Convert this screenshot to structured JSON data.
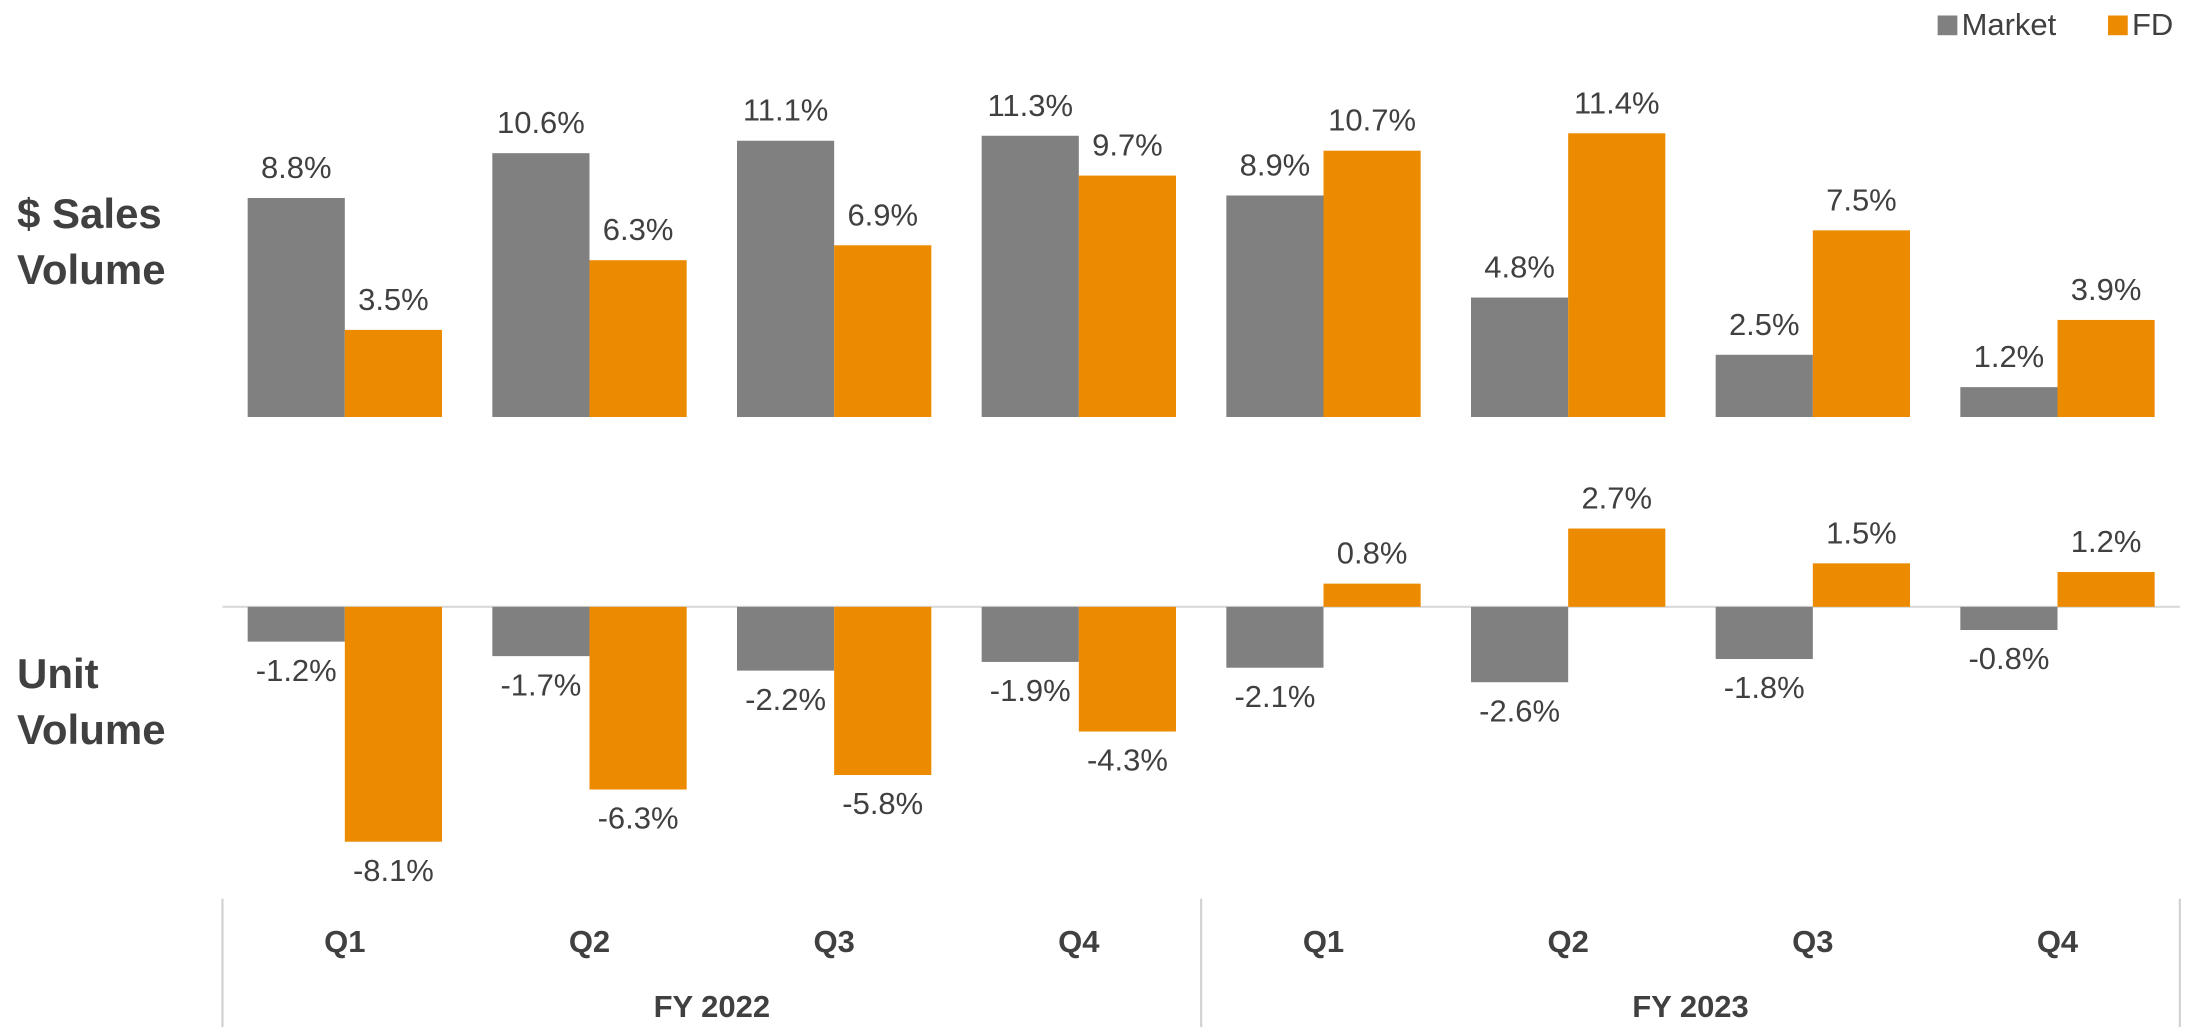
{
  "chart_data": [
    {
      "type": "bar",
      "ylabel": "$ Sales Volume",
      "ylim": [
        0,
        12
      ],
      "legend": "top-right",
      "categories": [
        "Q1",
        "Q2",
        "Q3",
        "Q4",
        "Q1",
        "Q2",
        "Q3",
        "Q4"
      ],
      "groups": [
        "FY 2022",
        "FY 2023"
      ],
      "series": [
        {
          "name": "Market",
          "color": "#808080",
          "values": [
            8.8,
            10.6,
            11.1,
            11.3,
            8.9,
            4.8,
            2.5,
            1.2
          ],
          "value_labels": [
            "8.8%",
            "10.6%",
            "11.1%",
            "11.3%",
            "8.9%",
            "4.8%",
            "2.5%",
            "1.2%"
          ]
        },
        {
          "name": "FD",
          "color": "#ED8B00",
          "values": [
            3.5,
            6.3,
            6.9,
            9.7,
            10.7,
            11.4,
            7.5,
            3.9
          ],
          "value_labels": [
            "3.5%",
            "6.3%",
            "6.9%",
            "9.7%",
            "10.7%",
            "11.4%",
            "7.5%",
            "3.9%"
          ]
        }
      ]
    },
    {
      "type": "bar",
      "ylabel": "Unit Volume",
      "ylim": [
        -9,
        3
      ],
      "series": [
        {
          "color": "#808080",
          "values": [
            -1.2,
            -1.7,
            -2.2,
            -1.9,
            -2.1,
            -2.6,
            -1.8,
            -0.8
          ],
          "value_labels": [
            "-1.2%",
            "-1.7%",
            "-2.2%",
            "-1.9%",
            "-2.1%",
            "-2.6%",
            "-1.8%",
            "-0.8%"
          ]
        },
        {
          "color": "#ED8B00",
          "values": [
            -8.1,
            -6.3,
            -5.8,
            -4.3,
            0.8,
            2.7,
            1.5,
            1.2
          ],
          "value_labels": [
            "-8.1%",
            "-6.3%",
            "-5.8%",
            "-4.3%",
            "0.8%",
            "2.7%",
            "1.5%",
            "1.2%"
          ]
        }
      ]
    }
  ]
}
